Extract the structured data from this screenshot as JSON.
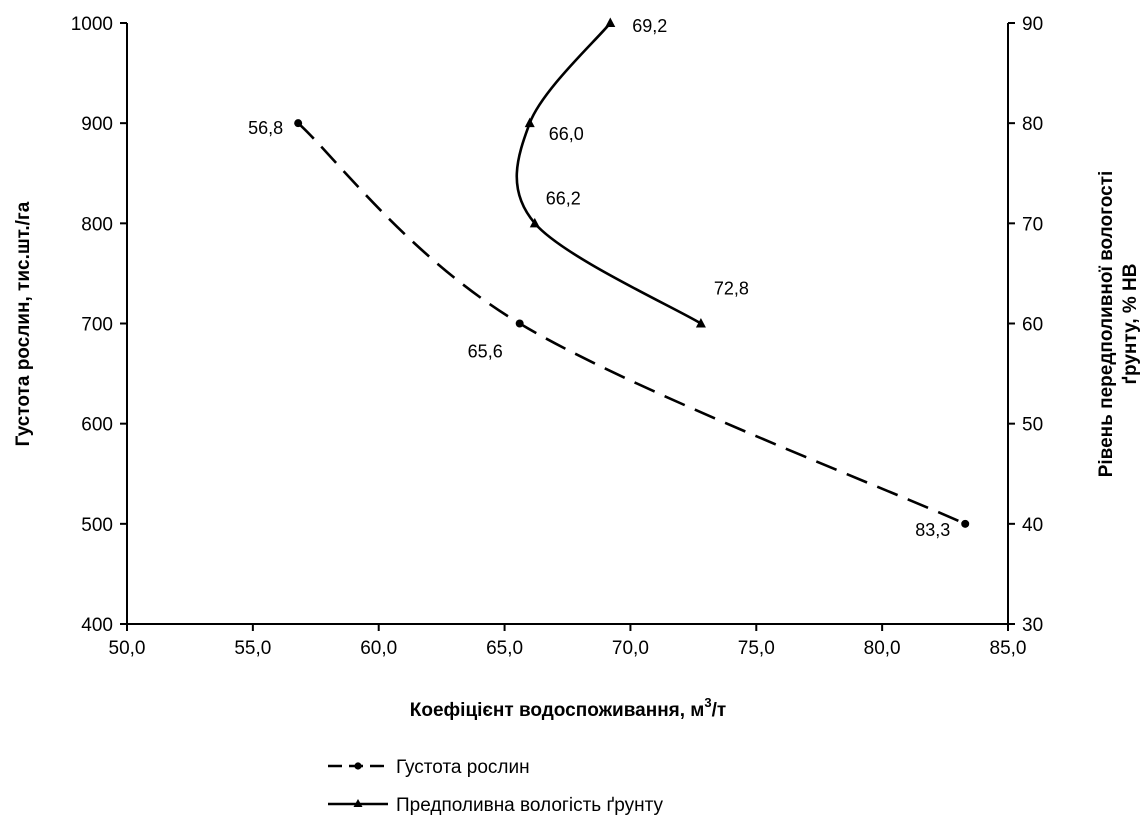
{
  "chart_data": {
    "type": "scatter",
    "title": "",
    "xlabel": "Коефіцієнт водоспоживання, м",
    "xlabel_sup": "3",
    "xlabel_unit_tail": "/т",
    "ylabel_left": "Густота рослин, тис.шт./га",
    "ylabel_right_line1": "Рівень передполивної вологості",
    "ylabel_right_line2": "ґрунту, % НВ",
    "xlim": [
      50,
      85
    ],
    "ylim_left": [
      400,
      1000
    ],
    "ylim_right": [
      30,
      90
    ],
    "x_ticks": [
      "50,0",
      "55,0",
      "60,0",
      "65,0",
      "70,0",
      "75,0",
      "80,0",
      "85,0"
    ],
    "y_left_ticks": [
      "400",
      "500",
      "600",
      "700",
      "800",
      "900",
      "1000"
    ],
    "y_right_ticks": [
      "30",
      "40",
      "50",
      "60",
      "70",
      "80",
      "90"
    ],
    "grid": false,
    "legend_position": "bottom",
    "series": [
      {
        "name": "Густота  рослин",
        "axis": "left",
        "line_style": "dashed",
        "marker": "circle",
        "points": [
          {
            "x": 56.8,
            "y": 900,
            "label": "56,8"
          },
          {
            "x": 65.6,
            "y": 700,
            "label": "65,6"
          },
          {
            "x": 83.3,
            "y": 500,
            "label": "83,3"
          }
        ]
      },
      {
        "name": "Предполивна вологість ґрунту",
        "axis": "right",
        "line_style": "solid",
        "marker": "triangle",
        "points": [
          {
            "x": 72.8,
            "y": 60,
            "label": "72,8"
          },
          {
            "x": 66.2,
            "y": 70,
            "label": "66,2"
          },
          {
            "x": 66.0,
            "y": 80,
            "label": "66,0"
          },
          {
            "x": 69.2,
            "y": 90,
            "label": "69,2"
          }
        ]
      }
    ]
  }
}
